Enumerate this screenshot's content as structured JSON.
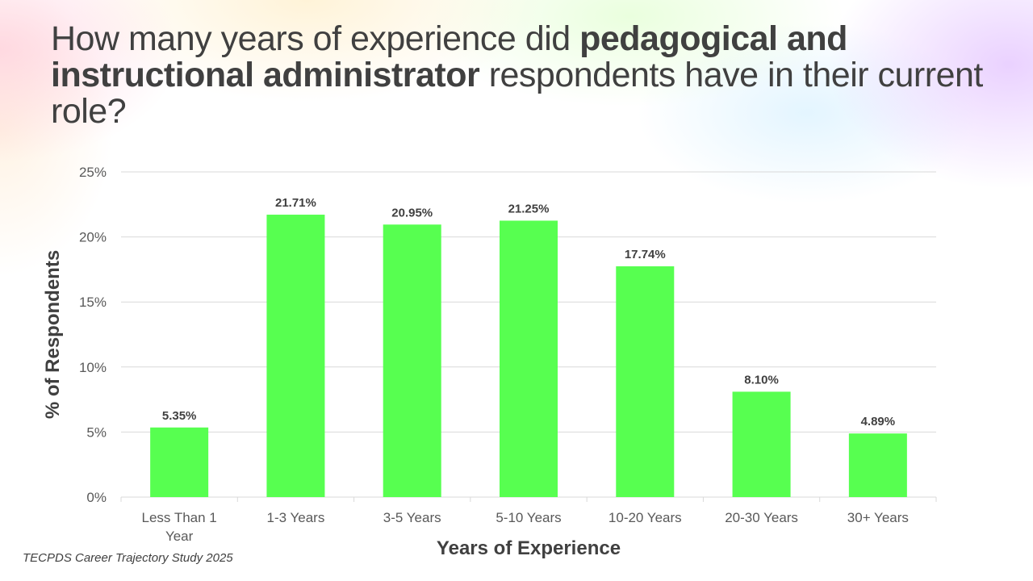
{
  "title": {
    "part1": "How many years of experience did ",
    "bold": "pedagogical and instructional administrator",
    "part2": " respondents have in their current role?"
  },
  "source": "TECPDS Career Trajectory Study 2025",
  "chart_data": {
    "type": "bar",
    "categories": [
      [
        "Less Than 1",
        "Year"
      ],
      [
        "1-3 Years"
      ],
      [
        "3-5 Years"
      ],
      [
        "5-10 Years"
      ],
      [
        "10-20 Years"
      ],
      [
        "20-30 Years"
      ],
      [
        "30+ Years"
      ]
    ],
    "values": [
      5.35,
      21.71,
      20.95,
      21.25,
      17.74,
      8.1,
      4.89
    ],
    "data_labels": [
      "5.35%",
      "21.71%",
      "20.95%",
      "21.25%",
      "17.74%",
      "8.10%",
      "4.89%"
    ],
    "xlabel": "Years of Experience",
    "ylabel": "% of Respondents",
    "ylim": [
      0,
      25
    ],
    "yticks": [
      "0%",
      "5%",
      "10%",
      "15%",
      "20%",
      "25%"
    ],
    "grid": true,
    "bar_color": "#57FF50"
  }
}
